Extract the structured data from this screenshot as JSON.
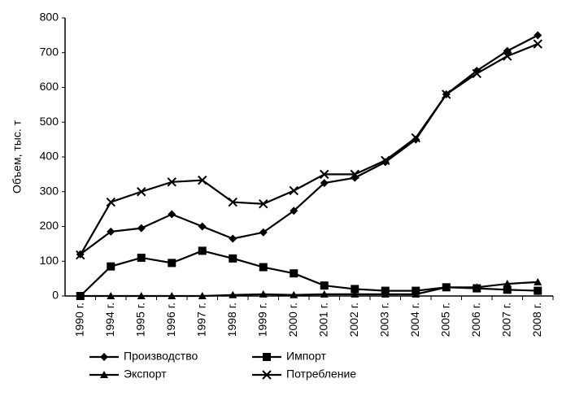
{
  "chart_data": {
    "type": "line",
    "y_label": "Объем, тыс. т",
    "categories": [
      "1990 г.",
      "1994 г.",
      "1995 г.",
      "1996 г.",
      "1997 г.",
      "1998 г.",
      "1999 г.",
      "2000 г.",
      "2001 г.",
      "2002 г.",
      "2003 г.",
      "2004 г.",
      "2005 г.",
      "2006 г.",
      "2007 г.",
      "2008 г."
    ],
    "series": [
      {
        "name": "Производство",
        "color": "#000000",
        "marker": "diamond",
        "values": [
          120,
          185,
          195,
          235,
          200,
          165,
          183,
          245,
          325,
          340,
          385,
          450,
          580,
          648,
          705,
          750
        ]
      },
      {
        "name": "Импорт",
        "color": "#000000",
        "marker": "square",
        "values": [
          0,
          85,
          110,
          95,
          130,
          108,
          83,
          65,
          30,
          20,
          15,
          15,
          25,
          22,
          18,
          15
        ]
      },
      {
        "name": "Экспорт",
        "color": "#000000",
        "marker": "triangle",
        "values": [
          0,
          0,
          0,
          0,
          0,
          3,
          5,
          3,
          5,
          5,
          5,
          5,
          25,
          25,
          35,
          40
        ]
      },
      {
        "name": "Потребление",
        "color": "#000000",
        "marker": "cross",
        "values": [
          118,
          270,
          300,
          328,
          333,
          270,
          265,
          303,
          350,
          350,
          390,
          455,
          580,
          640,
          690,
          725
        ]
      }
    ],
    "ylim": [
      0,
      800
    ],
    "yticks": [
      0,
      100,
      200,
      300,
      400,
      500,
      600,
      700,
      800
    ],
    "grid": false,
    "legend": "bottom"
  }
}
